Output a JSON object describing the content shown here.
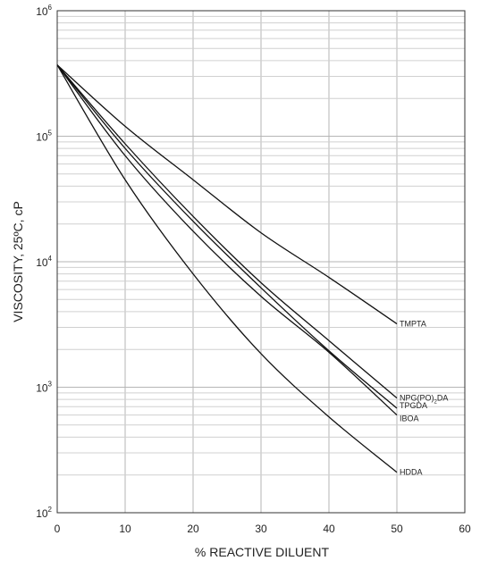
{
  "chart_data": {
    "type": "line",
    "xlabel": "% REACTIVE DILUENT",
    "ylabel": "VISCOSITY, 25ºC, cP",
    "xlim": [
      0,
      60
    ],
    "ylim": [
      100,
      1000000
    ],
    "y_scale": "log",
    "grid": true,
    "x_ticks": [
      0,
      10,
      20,
      30,
      40,
      50,
      60
    ],
    "y_ticks": [
      {
        "value": 100,
        "base": "10",
        "exp": "2"
      },
      {
        "value": 1000,
        "base": "10",
        "exp": "3"
      },
      {
        "value": 10000,
        "base": "10",
        "exp": "4"
      },
      {
        "value": 100000,
        "base": "10",
        "exp": "5"
      },
      {
        "value": 1000000,
        "base": "10",
        "exp": "6"
      }
    ],
    "series": [
      {
        "name": "TMPTA",
        "label": {
          "text": "TMPTA"
        },
        "x": [
          0,
          10,
          20,
          30,
          40,
          50
        ],
        "y": [
          370000,
          120000,
          45000,
          17000,
          7500,
          3200
        ]
      },
      {
        "name": "NPG(PO)2DA",
        "label": {
          "text": "NPG(PO)",
          "sub": "2",
          "suffix": "DA"
        },
        "x": [
          0,
          10,
          20,
          30,
          40,
          50
        ],
        "y": [
          370000,
          87000,
          23000,
          6800,
          2350,
          820
        ]
      },
      {
        "name": "TPGDA",
        "label": {
          "text": "TPGDA"
        },
        "x": [
          0,
          10,
          20,
          30,
          40,
          50
        ],
        "y": [
          370000,
          80000,
          21000,
          6200,
          1950,
          680
        ]
      },
      {
        "name": "IBOA",
        "label": {
          "text": "IBOA"
        },
        "x": [
          0,
          10,
          20,
          30,
          40,
          50
        ],
        "y": [
          370000,
          70000,
          17500,
          5300,
          1900,
          600
        ]
      },
      {
        "name": "HDDA",
        "label": {
          "text": "HDDA"
        },
        "x": [
          0,
          10,
          20,
          30,
          40,
          50
        ],
        "y": [
          370000,
          45000,
          8000,
          1850,
          580,
          210
        ]
      }
    ]
  }
}
